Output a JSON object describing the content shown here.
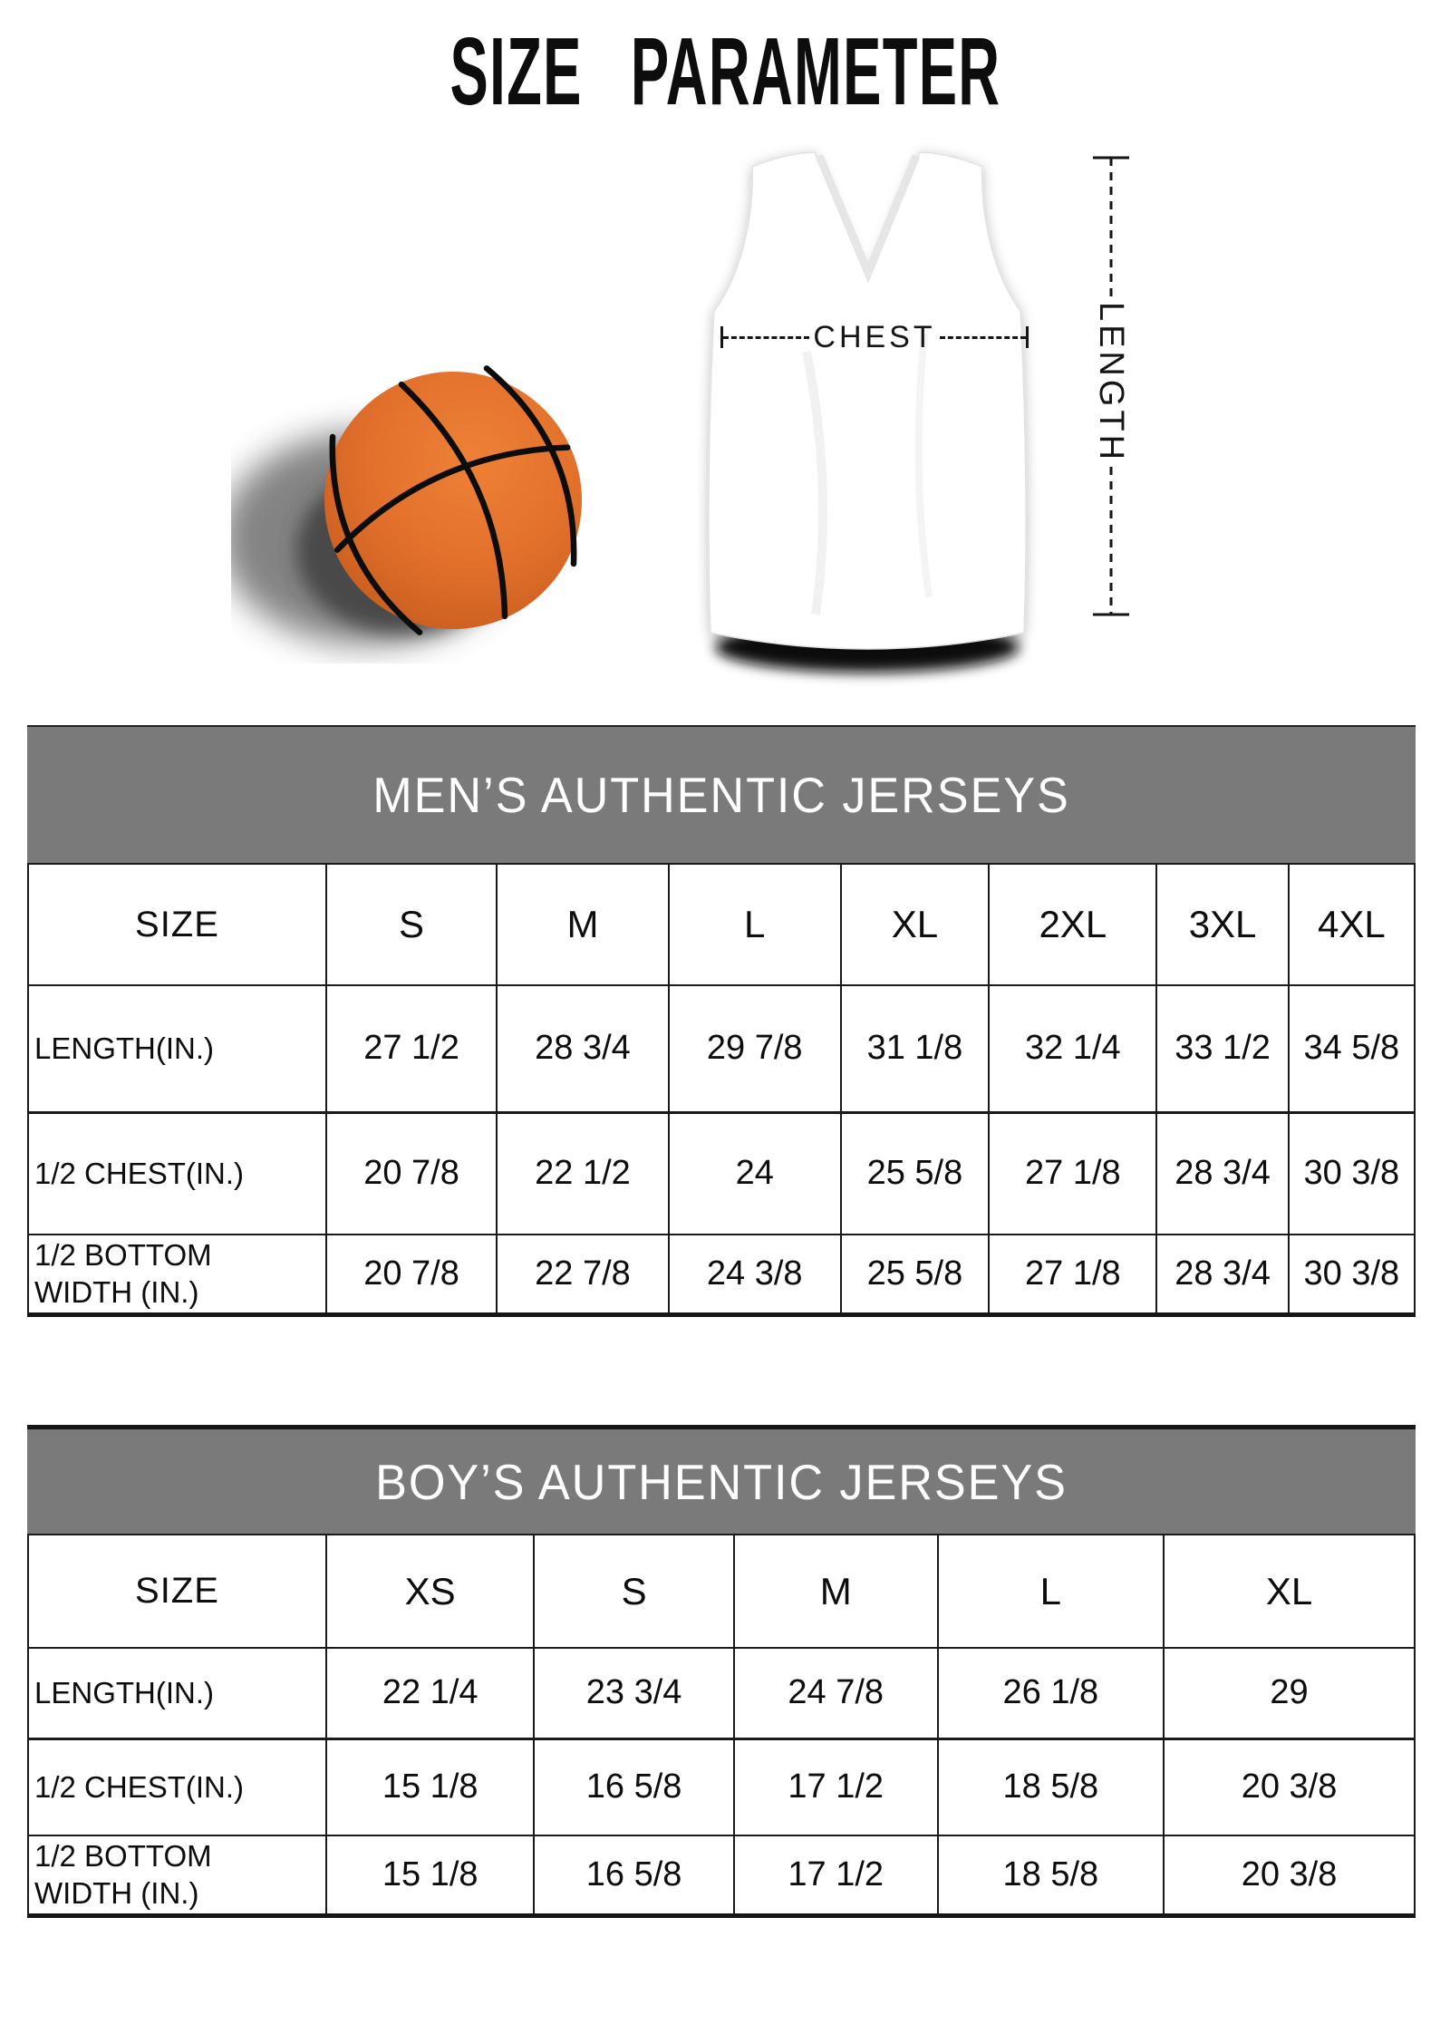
{
  "title": "SIZE PARAMETER",
  "diagram": {
    "chest_label": "CHEST",
    "length_label": "LENGTH"
  },
  "tables": {
    "men": {
      "title": "MEN’S AUTHENTIC JERSEYS",
      "size_label": "SIZE",
      "columns": [
        "S",
        "M",
        "L",
        "XL",
        "2XL",
        "3XL",
        "4XL"
      ],
      "rows": [
        {
          "label": "LENGTH(IN.)",
          "values": [
            "27 1/2",
            "28 3/4",
            "29 7/8",
            "31 1/8",
            "32 1/4",
            "33 1/2",
            "34 5/8"
          ]
        },
        {
          "label": "1/2 CHEST(IN.)",
          "values": [
            "20 7/8",
            "22 1/2",
            "24",
            "25 5/8",
            "27 1/8",
            "28 3/4",
            "30 3/8"
          ]
        },
        {
          "label": "1/2 BOTTOM\nWIDTH (IN.)",
          "values": [
            "20 7/8",
            "22 7/8",
            "24 3/8",
            "25 5/8",
            "27 1/8",
            "28 3/4",
            "30 3/8"
          ]
        }
      ]
    },
    "boys": {
      "title": "BOY’S AUTHENTIC JERSEYS",
      "size_label": "SIZE",
      "columns": [
        "XS",
        "S",
        "M",
        "L",
        "XL"
      ],
      "rows": [
        {
          "label": "LENGTH(IN.)",
          "values": [
            "22 1/4",
            "23 3/4",
            "24 7/8",
            "26 1/8",
            "29"
          ]
        },
        {
          "label": "1/2 CHEST(IN.)",
          "values": [
            "15 1/8",
            "16 5/8",
            "17 1/2",
            "18 5/8",
            "20 3/8"
          ]
        },
        {
          "label": "1/2 BOTTOM\nWIDTH (IN.)",
          "values": [
            "15 1/8",
            "16 5/8",
            "17 1/2",
            "18 5/8",
            "20 3/8"
          ]
        }
      ]
    }
  },
  "colors": {
    "band_background": "#7a7a7a",
    "band_text": "#ffffff",
    "table_border": "#1a1a1a",
    "ball_orange": "#e2702c",
    "text": "#0d0d0d"
  }
}
